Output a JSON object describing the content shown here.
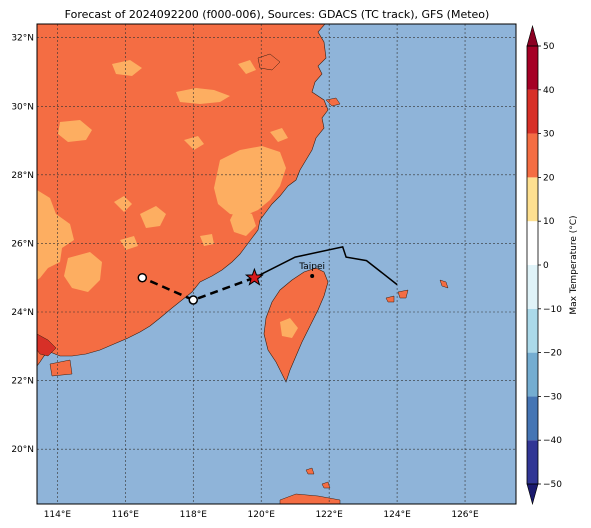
{
  "title": "Forecast of 2024092200 (f000-006), Sources: GDACS (TC track), GFS (Meteo)",
  "map": {
    "lat_labels": [
      "32°N",
      "30°N",
      "28°N",
      "26°N",
      "24°N",
      "22°N",
      "20°N"
    ],
    "lon_labels": [
      "114°E",
      "116°E",
      "118°E",
      "120°E",
      "122°E",
      "124°E",
      "126°E"
    ],
    "lat_values": [
      32,
      30,
      28,
      26,
      24,
      22,
      20
    ],
    "lon_values": [
      114,
      116,
      118,
      120,
      122,
      124,
      126
    ],
    "lon_range": [
      113.4,
      127.5
    ],
    "lat_range": [
      18.4,
      32.4
    ],
    "grid": true,
    "city": {
      "name": "Taipei",
      "lon": 121.5,
      "lat": 25.05
    },
    "colors": {
      "ocean": "#8fb4d9",
      "land_hot": "#f46d43",
      "land_warm": "#fdae61",
      "track_line": "#000000"
    }
  },
  "track": {
    "past": [
      [
        124.0,
        24.8
      ],
      [
        123.1,
        25.5
      ],
      [
        122.5,
        25.6
      ],
      [
        122.4,
        25.9
      ],
      [
        121.0,
        25.6
      ],
      [
        119.8,
        25.0
      ]
    ],
    "forecast": [
      [
        119.8,
        25.0
      ],
      [
        118.0,
        24.35
      ],
      [
        116.5,
        25.0
      ]
    ],
    "current_marker": {
      "lon": 119.8,
      "lat": 25.0,
      "color": "#d7191c"
    },
    "forecast_markers": [
      {
        "lon": 118.0,
        "lat": 24.35
      },
      {
        "lon": 116.5,
        "lat": 25.0
      }
    ]
  },
  "colorbar": {
    "label": "Max Temperature (°C)",
    "ticks": [
      "50",
      "40",
      "30",
      "20",
      "10",
      "0",
      "−10",
      "−20",
      "−30",
      "−40",
      "−50"
    ],
    "tick_values": [
      50,
      40,
      30,
      20,
      10,
      0,
      -10,
      -20,
      -30,
      -40,
      -50
    ],
    "range": [
      -50,
      50
    ],
    "segments": [
      {
        "from": -50,
        "to": -40,
        "color": "#313695"
      },
      {
        "from": -40,
        "to": -30,
        "color": "#4575b4"
      },
      {
        "from": -30,
        "to": -20,
        "color": "#74add1"
      },
      {
        "from": -20,
        "to": -10,
        "color": "#abd9e9"
      },
      {
        "from": -10,
        "to": 0,
        "color": "#e0f3f8"
      },
      {
        "from": 0,
        "to": 10,
        "color": "#ffffff"
      },
      {
        "from": 10,
        "to": 20,
        "color": "#fee090"
      },
      {
        "from": 20,
        "to": 30,
        "color": "#f46d43"
      },
      {
        "from": 30,
        "to": 40,
        "color": "#d73027"
      },
      {
        "from": 40,
        "to": 50,
        "color": "#a50026"
      }
    ],
    "extend_low_color": "#1a1a6e",
    "extend_high_color": "#8b0022"
  }
}
